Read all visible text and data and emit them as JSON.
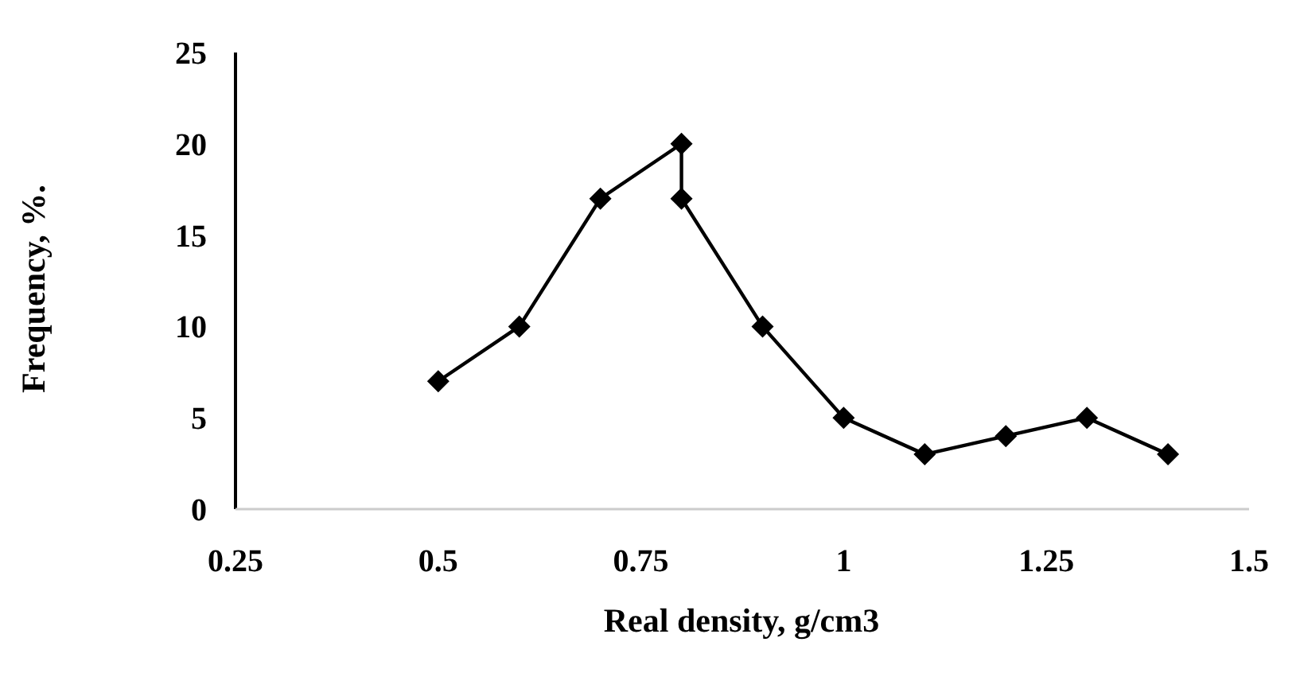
{
  "chart_data": {
    "type": "line",
    "xlabel": "Real density, g/cm3",
    "ylabel": "Frequency, %.",
    "x": [
      0.5,
      0.6,
      0.7,
      0.8,
      0.8,
      0.9,
      1.0,
      1.1,
      1.2,
      1.3,
      1.4
    ],
    "series": [
      {
        "color": "#000000",
        "values": [
          7,
          10,
          17,
          20,
          17,
          10,
          5,
          3,
          4,
          5,
          3
        ]
      }
    ],
    "xlim": [
      0.25,
      1.5
    ],
    "xticks": [
      0.25,
      0.5,
      0.75,
      1,
      1.25,
      1.5
    ],
    "ylim": [
      0,
      25
    ],
    "yticks": [
      0,
      5,
      10,
      15,
      20,
      25
    ],
    "marker": "diamond",
    "line_style": "solid"
  }
}
